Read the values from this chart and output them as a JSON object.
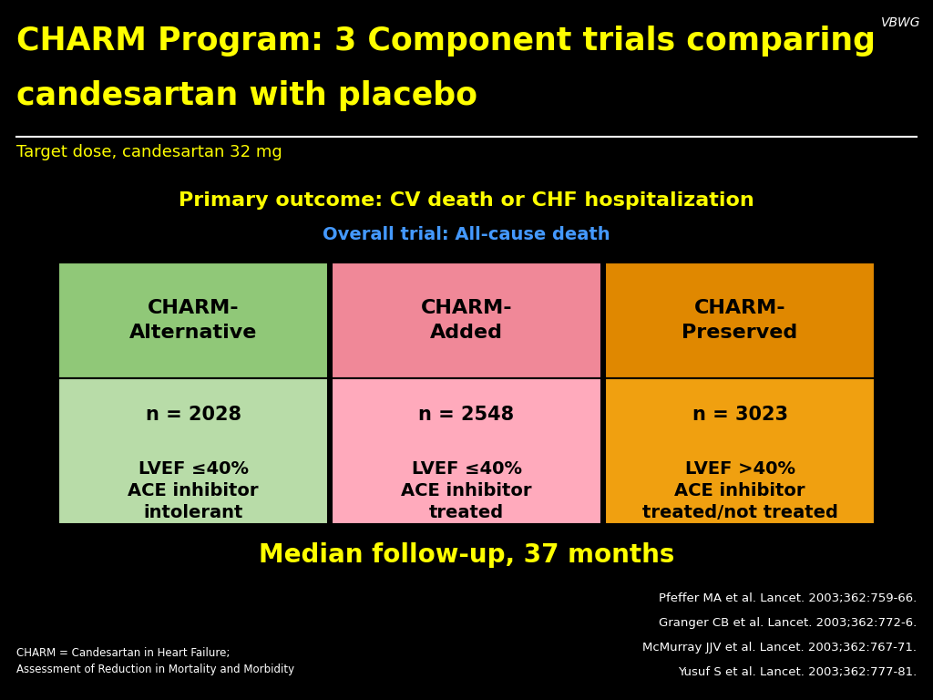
{
  "background_color": "#000000",
  "vbwg_label": "VBWG",
  "title_line1": "CHARM Program: 3 Component trials comparing",
  "title_line2": "candesartan with placebo",
  "title_color": "#FFFF00",
  "subtitle": "Target dose, candesartan 32 mg",
  "subtitle_color": "#FFFF00",
  "primary_outcome_label": "Primary outcome: CV death or CHF hospitalization",
  "primary_outcome_color": "#FFFF00",
  "overall_trial_label": "Overall trial: All-cause death",
  "overall_trial_color": "#4499FF",
  "columns": [
    {
      "header": "CHARM-\nAlternative",
      "header_bg": "#90C878",
      "body_bg": "#B8DCA8",
      "n": "n = 2028",
      "lvef": "LVEF ≤40%",
      "ace": "ACE inhibitor\nintolerant"
    },
    {
      "header": "CHARM-\nAdded",
      "header_bg": "#F08898",
      "body_bg": "#FFAABC",
      "n": "n = 2548",
      "lvef": "LVEF ≤40%",
      "ace": "ACE inhibitor\ntreated"
    },
    {
      "header": "CHARM-\nPreserved",
      "header_bg": "#E08800",
      "body_bg": "#F0A010",
      "n": "n = 3023",
      "lvef": "LVEF >40%",
      "ace": "ACE inhibitor\ntreated/not treated"
    }
  ],
  "footer_text": "Median follow-up, 37 months",
  "footer_color": "#FFFF00",
  "refs": [
    [
      "Pfeffer MA et al. ",
      "Lancet",
      ". 2003;362:759-66."
    ],
    [
      "Granger CB et al. ",
      "Lancet",
      ". 2003;362:772-6."
    ],
    [
      "McMurray JJV et al. ",
      "Lancet",
      ". 2003;362:767-71."
    ],
    [
      "Yusuf S et al. ",
      "Lancet",
      ". 2003;362:777-81."
    ]
  ],
  "charm_footnote_line1": "CHARM = Candesartan in Heart Failure;",
  "charm_footnote_line2": "Assessment of Reduction in Mortality and Morbidity"
}
